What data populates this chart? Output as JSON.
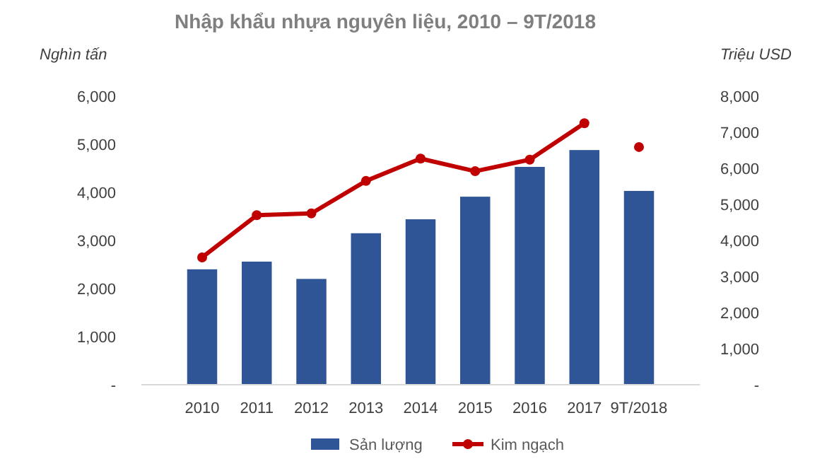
{
  "chart_data": {
    "type": "bar",
    "title": "Nhập khẩu nhựa nguyên liệu, 2010 – 9T/2018",
    "ylabel": "Nghìn tấn",
    "y2label": "Triệu USD",
    "categories": [
      "2010",
      "2011",
      "2012",
      "2013",
      "2014",
      "2015",
      "2016",
      "2017",
      "9T/2018"
    ],
    "series": [
      {
        "name": "Sản lượng",
        "color": "#2f5597",
        "values": [
          2400,
          2560,
          2200,
          3150,
          3440,
          3910,
          4530,
          4880,
          4030
        ]
      },
      {
        "name": "Kim ngạch",
        "type": "line",
        "axis": "y2",
        "color": "#c00000",
        "marker": "circle",
        "values": [
          3530,
          4700,
          4750,
          5650,
          6270,
          5920,
          6240,
          7250,
          null
        ]
      },
      {
        "type": "scatter",
        "axis": "y2",
        "color": "#c00000",
        "marker": "circle",
        "values": [
          null,
          null,
          null,
          null,
          null,
          null,
          null,
          null,
          6590
        ]
      }
    ],
    "ylim": [
      0,
      6000
    ],
    "yticks": [
      {
        "value": 0,
        "label": "-"
      },
      {
        "value": 1000,
        "label": "1,000"
      },
      {
        "value": 2000,
        "label": "2,000"
      },
      {
        "value": 3000,
        "label": "3,000"
      },
      {
        "value": 4000,
        "label": "4,000"
      },
      {
        "value": 5000,
        "label": "5,000"
      },
      {
        "value": 6000,
        "label": "6,000"
      }
    ],
    "y2lim": [
      0,
      8000
    ],
    "y2ticks": [
      {
        "value": 0,
        "label": "-"
      },
      {
        "value": 1000,
        "label": "1,000"
      },
      {
        "value": 2000,
        "label": "2,000"
      },
      {
        "value": 3000,
        "label": "3,000"
      },
      {
        "value": 4000,
        "label": "4,000"
      },
      {
        "value": 5000,
        "label": "5,000"
      },
      {
        "value": 6000,
        "label": "6,000"
      },
      {
        "value": 7000,
        "label": "7,000"
      },
      {
        "value": 8000,
        "label": "8,000"
      }
    ],
    "legend": "bottom",
    "grid": false
  }
}
